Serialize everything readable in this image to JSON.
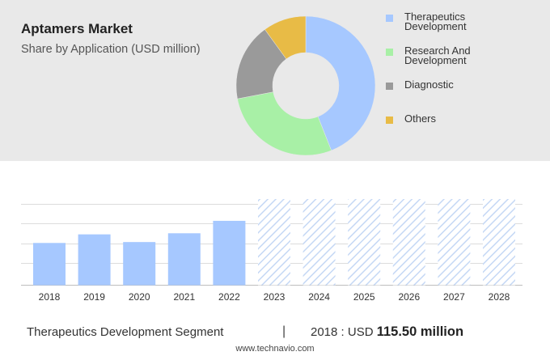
{
  "header": {
    "title": "Aptamers Market",
    "subtitle": "Share by Application (USD million)"
  },
  "colors": {
    "therapeutics": "#a6c8ff",
    "research": "#a8f0a6",
    "diagnostic": "#9a9a9a",
    "others": "#e8bb46",
    "bar": "#a6c8ff",
    "forecast_hatch": "#c5d8f5"
  },
  "legend": [
    {
      "label_lines": [
        "Therapeutics",
        "Development"
      ],
      "color": "#a6c8ff"
    },
    {
      "label_lines": [
        "Research And",
        "Development"
      ],
      "color": "#a8f0a6"
    },
    {
      "label_lines": [
        "Diagnostic"
      ],
      "color": "#9a9a9a"
    },
    {
      "label_lines": [
        "Others"
      ],
      "color": "#e8bb46"
    }
  ],
  "chart_data": [
    {
      "type": "pie",
      "slices": [
        {
          "label": "Therapeutics Development",
          "value": 44,
          "color": "#a6c8ff"
        },
        {
          "label": "Research And Development",
          "value": 28,
          "color": "#a8f0a6"
        },
        {
          "label": "Diagnostic",
          "value": 18,
          "color": "#9a9a9a"
        },
        {
          "label": "Others",
          "value": 10,
          "color": "#e8bb46"
        }
      ]
    },
    {
      "type": "bar",
      "categories": [
        "2018",
        "2019",
        "2020",
        "2021",
        "2022",
        "2023",
        "2024",
        "2025",
        "2026",
        "2027",
        "2028"
      ],
      "values": [
        115.5,
        139,
        118,
        142,
        176,
        null,
        null,
        null,
        null,
        null,
        null
      ],
      "forecast_categories": [
        "2023",
        "2024",
        "2025",
        "2026",
        "2027",
        "2028"
      ],
      "ylim": [
        0,
        240
      ],
      "grid": true
    }
  ],
  "footer": {
    "segment": "Therapeutics Development Segment",
    "divider": "|",
    "value_prefix": "2018 : USD",
    "value": "115.50 million",
    "source": "www.technavio.com"
  }
}
